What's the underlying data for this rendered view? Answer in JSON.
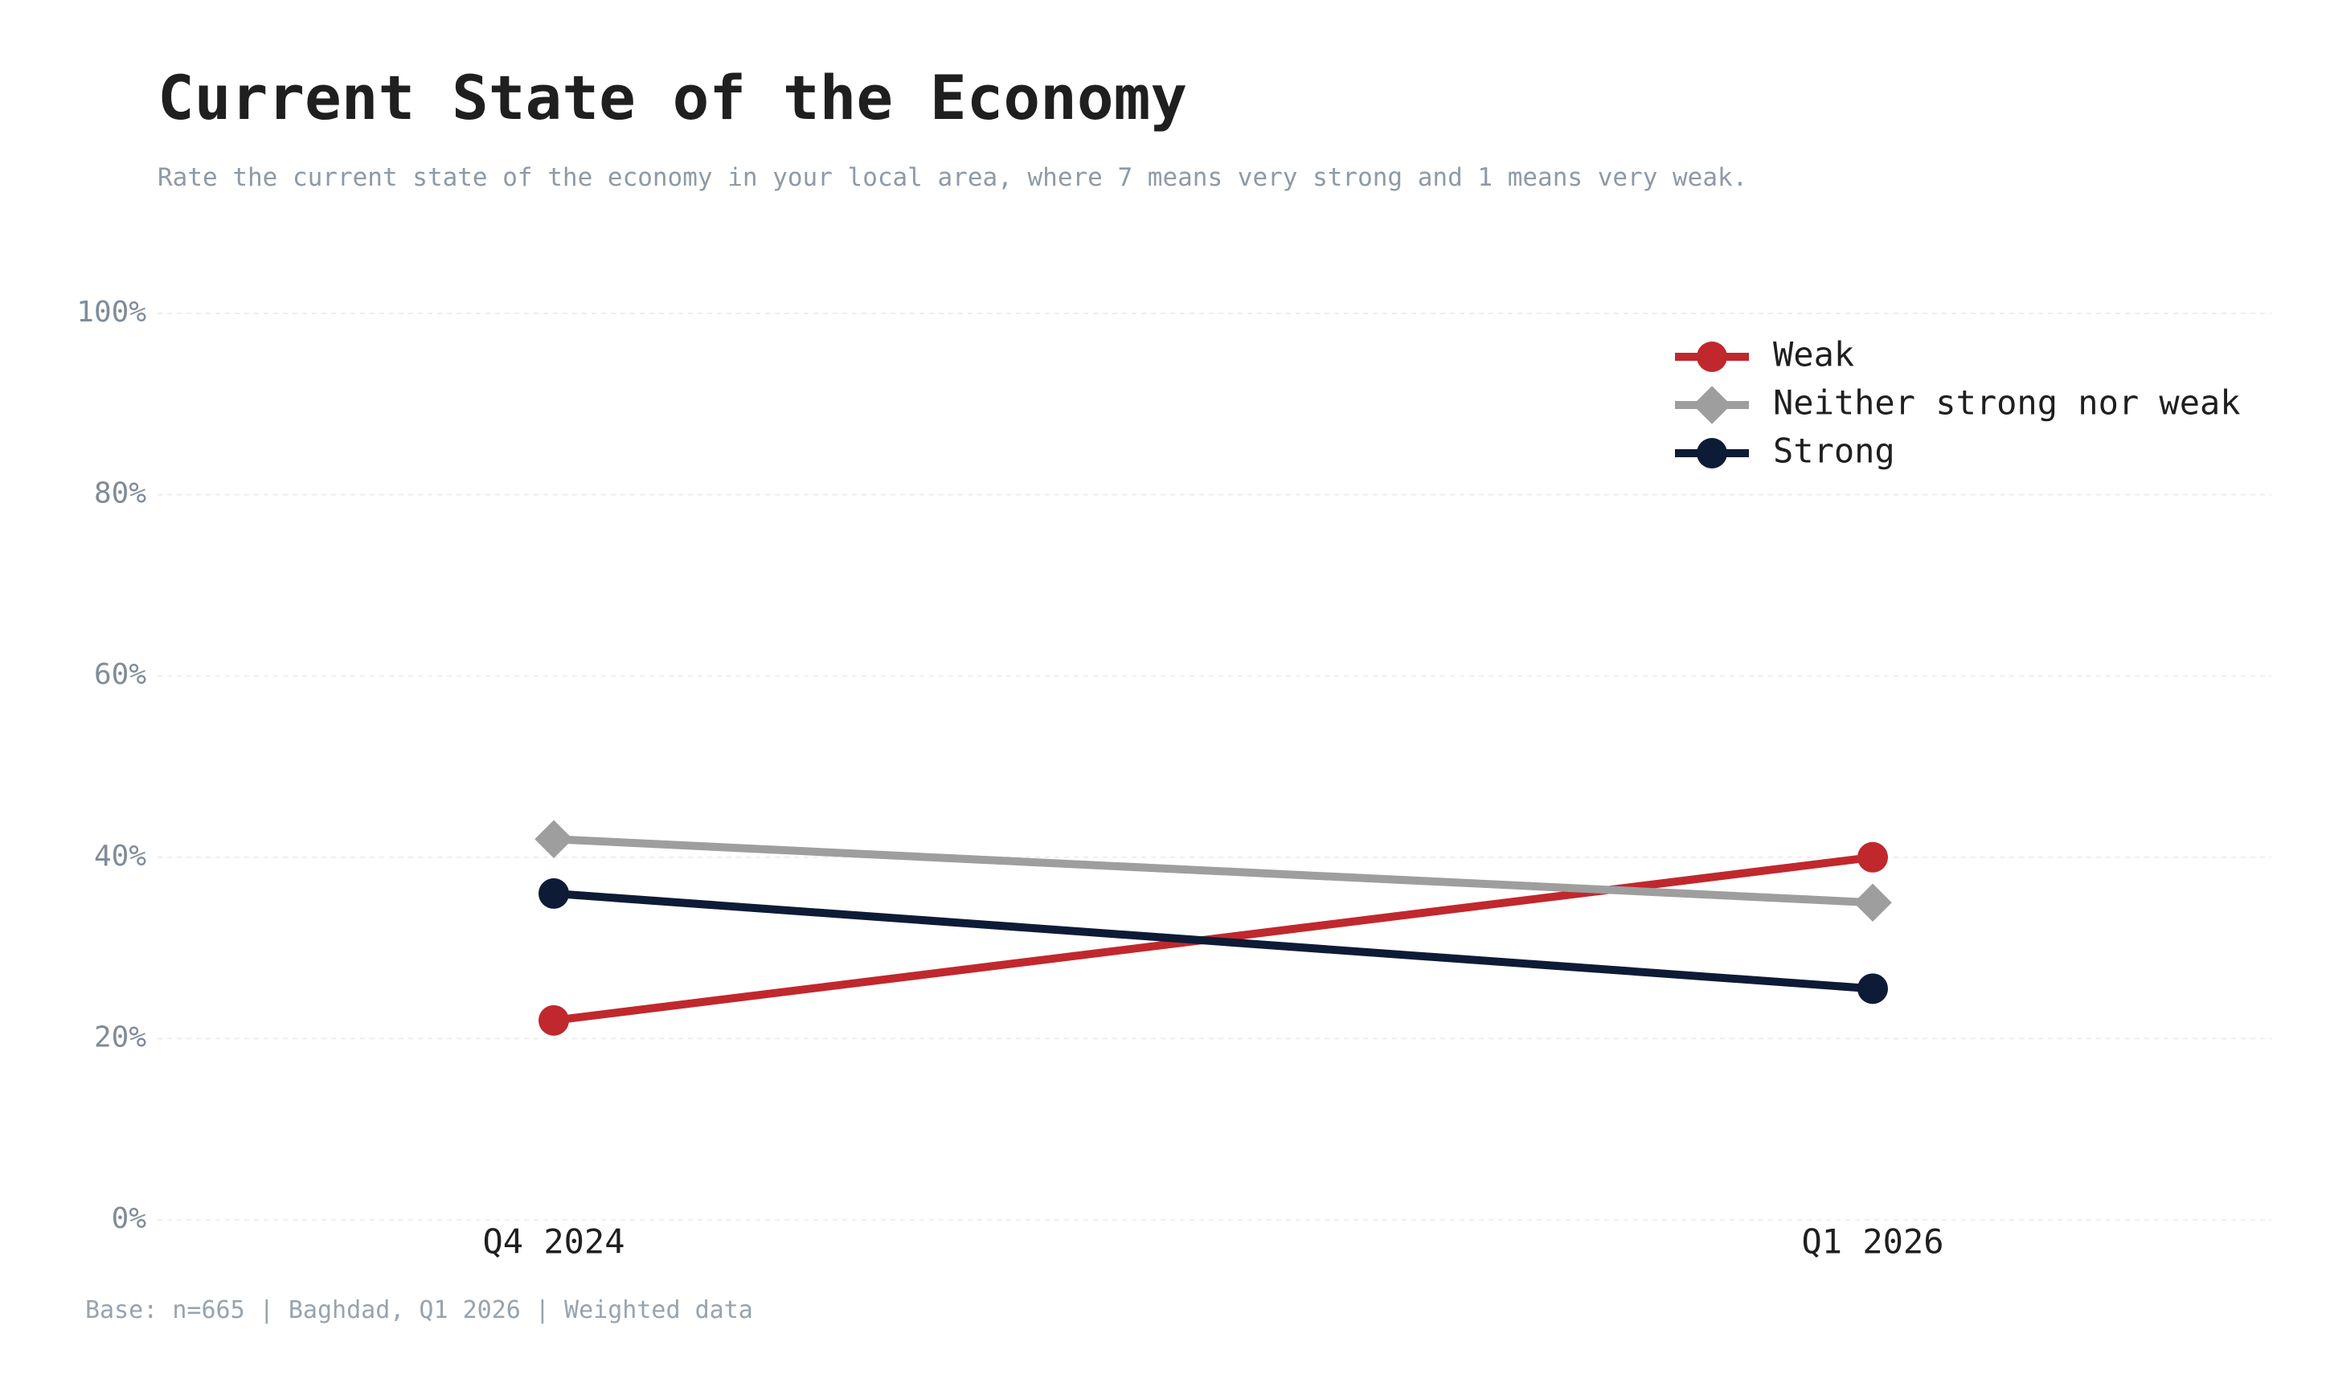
{
  "header": {
    "title": "Current State of the Economy",
    "subtitle": "Rate the current state of the economy in your local area, where 7 means very strong and 1 means very weak."
  },
  "footer": {
    "note": "Base: n=665 | Baghdad, Q1 2026 | Weighted data"
  },
  "colors": {
    "weak": "#c0282d",
    "neither": "#9e9e9e",
    "strong": "#0d1b36",
    "grid": "#eeeeee"
  },
  "chart_data": {
    "type": "line",
    "title": "Current State of the Economy",
    "xlabel": "",
    "ylabel": "",
    "ylim": [
      0,
      100
    ],
    "grid": true,
    "legend_position": "top-right",
    "y_ticks": [
      0,
      20,
      40,
      60,
      80,
      100
    ],
    "y_tick_labels": [
      "0%",
      "20%",
      "40%",
      "60%",
      "80%",
      "100%"
    ],
    "categories": [
      "Q4 2024",
      "Q1 2026"
    ],
    "series": [
      {
        "name": "Weak",
        "values": [
          22,
          40
        ],
        "marker": "circle",
        "color": "#c0282d"
      },
      {
        "name": "Neither strong nor weak",
        "values": [
          42,
          35
        ],
        "marker": "diamond",
        "color": "#9e9e9e"
      },
      {
        "name": "Strong",
        "values": [
          36,
          25.5
        ],
        "marker": "circle",
        "color": "#0d1b36"
      }
    ]
  }
}
